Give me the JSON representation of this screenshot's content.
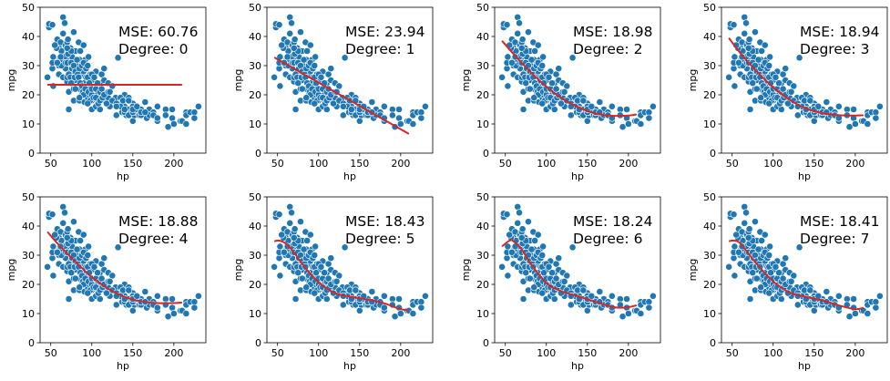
{
  "chart_data": {
    "type": "scatter",
    "layout": "2 rows x 4 columns",
    "xlabel": "hp",
    "ylabel": "mpg",
    "xlim": [
      37,
      239
    ],
    "ylim": [
      0,
      50
    ],
    "xticks": [
      50,
      100,
      150,
      200
    ],
    "yticks": [
      0,
      10,
      20,
      30,
      40,
      50
    ],
    "grid": false,
    "colors": {
      "points": "#1f77b4",
      "point_edge": "#ffffff",
      "fit_line": "#d62728"
    },
    "points": [
      [
        46,
        26
      ],
      [
        48,
        43.1
      ],
      [
        48,
        44.3
      ],
      [
        52,
        44
      ],
      [
        53,
        23
      ],
      [
        52,
        29
      ],
      [
        52,
        31
      ],
      [
        53,
        33
      ],
      [
        58,
        39
      ],
      [
        60,
        36
      ],
      [
        60,
        27
      ],
      [
        61,
        32
      ],
      [
        62,
        38
      ],
      [
        63,
        35
      ],
      [
        65,
        46.6
      ],
      [
        65,
        41
      ],
      [
        67,
        44.6
      ],
      [
        67,
        30
      ],
      [
        68,
        37
      ],
      [
        68,
        29
      ],
      [
        69,
        32
      ],
      [
        70,
        38
      ],
      [
        70,
        24.5
      ],
      [
        71,
        39
      ],
      [
        72,
        15
      ],
      [
        72,
        21
      ],
      [
        74,
        36
      ],
      [
        75,
        28
      ],
      [
        76,
        33
      ],
      [
        78,
        41.5
      ],
      [
        78,
        22
      ],
      [
        78,
        18
      ],
      [
        80,
        35
      ],
      [
        80,
        25
      ],
      [
        81,
        30
      ],
      [
        84,
        38
      ],
      [
        85,
        32
      ],
      [
        85,
        22
      ],
      [
        85,
        18
      ],
      [
        86,
        35
      ],
      [
        88,
        27
      ],
      [
        88,
        20
      ],
      [
        90,
        37
      ],
      [
        90,
        28
      ],
      [
        90,
        24
      ],
      [
        91,
        17.5
      ],
      [
        92,
        32
      ],
      [
        93,
        26
      ],
      [
        95,
        23
      ],
      [
        95,
        19
      ],
      [
        96,
        33
      ],
      [
        97,
        20
      ],
      [
        98,
        27
      ],
      [
        100,
        25
      ],
      [
        100,
        18
      ],
      [
        100,
        15
      ],
      [
        102,
        22
      ],
      [
        105,
        28
      ],
      [
        105,
        16
      ],
      [
        107,
        20
      ],
      [
        110,
        24
      ],
      [
        110,
        19
      ],
      [
        110,
        15
      ],
      [
        112,
        27
      ],
      [
        113,
        21
      ],
      [
        115,
        29
      ],
      [
        115,
        25
      ],
      [
        116,
        18
      ],
      [
        120,
        24
      ],
      [
        120,
        19
      ],
      [
        122,
        16
      ],
      [
        125,
        23
      ],
      [
        129,
        19
      ],
      [
        130,
        13
      ],
      [
        132,
        32.7
      ],
      [
        133,
        17
      ],
      [
        137,
        14
      ],
      [
        140,
        20
      ],
      [
        140,
        16
      ],
      [
        142,
        13
      ],
      [
        145,
        19
      ],
      [
        145,
        15
      ],
      [
        148,
        14
      ],
      [
        150,
        11
      ],
      [
        150,
        17
      ],
      [
        152,
        13
      ],
      [
        155,
        14
      ],
      [
        158,
        13
      ],
      [
        160,
        15
      ],
      [
        165,
        17.5
      ],
      [
        165,
        13
      ],
      [
        167,
        12
      ],
      [
        170,
        15
      ],
      [
        175,
        14
      ],
      [
        180,
        16
      ],
      [
        180,
        11
      ],
      [
        190,
        15
      ],
      [
        190,
        13
      ],
      [
        193,
        9
      ],
      [
        198,
        15
      ],
      [
        198,
        12
      ],
      [
        200,
        10
      ],
      [
        208,
        11
      ],
      [
        210,
        11
      ],
      [
        215,
        14
      ],
      [
        215,
        10
      ],
      [
        215,
        13
      ],
      [
        220,
        14
      ],
      [
        225,
        14
      ],
      [
        225,
        12
      ],
      [
        230,
        16
      ],
      [
        60,
        30
      ],
      [
        63,
        30
      ],
      [
        65,
        32
      ],
      [
        65,
        26
      ],
      [
        67,
        33
      ],
      [
        68,
        31
      ],
      [
        70,
        26
      ],
      [
        70,
        31
      ],
      [
        71,
        34
      ],
      [
        72,
        27
      ],
      [
        74,
        26
      ],
      [
        75,
        31
      ],
      [
        75,
        24
      ],
      [
        76,
        29
      ],
      [
        78,
        30
      ],
      [
        79,
        26
      ],
      [
        80,
        28
      ],
      [
        80,
        22
      ],
      [
        82,
        32
      ],
      [
        83,
        27
      ],
      [
        84,
        26
      ],
      [
        85,
        29
      ],
      [
        86,
        24
      ],
      [
        88,
        30
      ],
      [
        88,
        23
      ],
      [
        89,
        21
      ],
      [
        90,
        20
      ],
      [
        90,
        31
      ],
      [
        92,
        22
      ],
      [
        93,
        29
      ],
      [
        95,
        26
      ],
      [
        95,
        30
      ],
      [
        96,
        21
      ],
      [
        97,
        24
      ],
      [
        98,
        18
      ],
      [
        100,
        20
      ],
      [
        100,
        22
      ],
      [
        100,
        27
      ],
      [
        102,
        19
      ],
      [
        103,
        26
      ],
      [
        105,
        22
      ],
      [
        105,
        19
      ],
      [
        107,
        24
      ],
      [
        108,
        17
      ],
      [
        110,
        21
      ],
      [
        110,
        18
      ],
      [
        112,
        22
      ],
      [
        113,
        19
      ],
      [
        115,
        20
      ],
      [
        118,
        17
      ],
      [
        120,
        21
      ],
      [
        122,
        21
      ],
      [
        125,
        18
      ],
      [
        130,
        17
      ],
      [
        135,
        16
      ],
      [
        140,
        14
      ],
      [
        145,
        13
      ],
      [
        150,
        14
      ],
      [
        150,
        16
      ],
      [
        153,
        15
      ],
      [
        160,
        13
      ],
      [
        160,
        14
      ],
      [
        170,
        13
      ],
      [
        175,
        13
      ],
      [
        180,
        12
      ],
      [
        150,
        15
      ],
      [
        140,
        15
      ],
      [
        130,
        16
      ],
      [
        135,
        19
      ],
      [
        138,
        18
      ],
      [
        145,
        18
      ],
      [
        155,
        16
      ],
      [
        165,
        14
      ],
      [
        85,
        19
      ],
      [
        95,
        17
      ],
      [
        75,
        35
      ],
      [
        70,
        36
      ],
      [
        58,
        31
      ],
      [
        57,
        36
      ],
      [
        55,
        37
      ],
      [
        62,
        33
      ]
    ],
    "subplots": [
      {
        "mse_label": "MSE: 60.76",
        "degree_label": "Degree: 0",
        "fit": [
          [
            46,
            23.45
          ],
          [
            210,
            23.45
          ]
        ]
      },
      {
        "mse_label": "MSE: 23.94",
        "degree_label": "Degree: 1",
        "fit": [
          [
            46,
            32.8
          ],
          [
            210,
            6.6
          ]
        ]
      },
      {
        "mse_label": "MSE: 18.98",
        "degree_label": "Degree: 2",
        "fit": [
          [
            46,
            38.5
          ],
          [
            60,
            34
          ],
          [
            80,
            28
          ],
          [
            100,
            22.8
          ],
          [
            120,
            18.6
          ],
          [
            140,
            15.6
          ],
          [
            160,
            13.6
          ],
          [
            180,
            12.8
          ],
          [
            200,
            12.9
          ],
          [
            210,
            13.3
          ]
        ]
      },
      {
        "mse_label": "MSE: 18.94",
        "degree_label": "Degree: 3",
        "fit": [
          [
            46,
            39.5
          ],
          [
            60,
            34.3
          ],
          [
            80,
            28
          ],
          [
            100,
            22.6
          ],
          [
            120,
            18.3
          ],
          [
            140,
            15.3
          ],
          [
            160,
            13.7
          ],
          [
            180,
            13
          ],
          [
            200,
            12.9
          ],
          [
            210,
            13
          ]
        ]
      },
      {
        "mse_label": "MSE: 18.88",
        "degree_label": "Degree: 4",
        "fit": [
          [
            46,
            38
          ],
          [
            60,
            33.5
          ],
          [
            80,
            27.8
          ],
          [
            100,
            22.5
          ],
          [
            120,
            18.5
          ],
          [
            140,
            15.7
          ],
          [
            160,
            14.2
          ],
          [
            180,
            13.6
          ],
          [
            200,
            13.6
          ],
          [
            210,
            13.8
          ]
        ]
      },
      {
        "mse_label": "MSE: 18.43",
        "degree_label": "Degree: 5",
        "fit": [
          [
            46,
            34.8
          ],
          [
            52,
            35
          ],
          [
            60,
            34
          ],
          [
            70,
            31
          ],
          [
            80,
            27
          ],
          [
            100,
            20.7
          ],
          [
            120,
            17
          ],
          [
            140,
            15.7
          ],
          [
            160,
            14.8
          ],
          [
            180,
            13.5
          ],
          [
            200,
            11.5
          ],
          [
            210,
            11.2
          ]
        ]
      },
      {
        "mse_label": "MSE: 18.24",
        "degree_label": "Degree: 6",
        "fit": [
          [
            46,
            33
          ],
          [
            55,
            35
          ],
          [
            60,
            34.8
          ],
          [
            70,
            32
          ],
          [
            80,
            27.5
          ],
          [
            100,
            20.5
          ],
          [
            120,
            17.5
          ],
          [
            140,
            15.8
          ],
          [
            160,
            14
          ],
          [
            180,
            12.3
          ],
          [
            190,
            12
          ],
          [
            200,
            12.2
          ],
          [
            210,
            12.8
          ]
        ]
      },
      {
        "mse_label": "MSE: 18.41",
        "degree_label": "Degree: 7",
        "fit": [
          [
            46,
            34.8
          ],
          [
            52,
            35
          ],
          [
            60,
            34
          ],
          [
            80,
            27
          ],
          [
            100,
            21
          ],
          [
            120,
            17.2
          ],
          [
            140,
            15.7
          ],
          [
            160,
            14.5
          ],
          [
            180,
            12.8
          ],
          [
            200,
            11.5
          ],
          [
            210,
            12
          ]
        ]
      }
    ]
  }
}
